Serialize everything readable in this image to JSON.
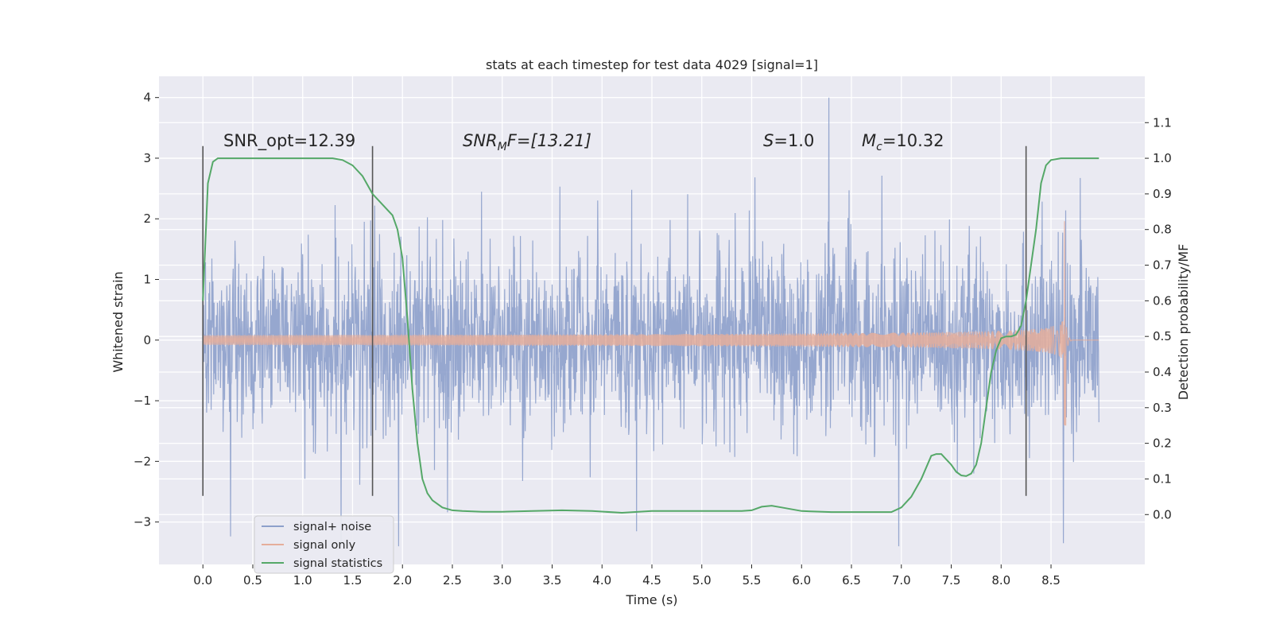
{
  "chart_data": {
    "type": "line",
    "title": "stats at each timestep for test data 4029 [signal=1]",
    "xlabel": "Time (s)",
    "ylabel": "Whitened strain",
    "ylabel_right": "Detection probability/MF",
    "xlim": [
      -0.44,
      9.44
    ],
    "ylim": [
      -3.7,
      4.35
    ],
    "ylim_right": [
      -0.14,
      1.23
    ],
    "x_ticks": [
      "0.0",
      "0.5",
      "1.0",
      "1.5",
      "2.0",
      "2.5",
      "3.0",
      "3.5",
      "4.0",
      "4.5",
      "5.0",
      "5.5",
      "6.0",
      "6.5",
      "7.0",
      "7.5",
      "8.0",
      "8.5"
    ],
    "y_ticks": [
      "−3",
      "−2",
      "−1",
      "0",
      "1",
      "2",
      "3",
      "4"
    ],
    "y_ticks_right": [
      "0.0",
      "0.1",
      "0.2",
      "0.3",
      "0.4",
      "0.5",
      "0.6",
      "0.7",
      "0.8",
      "0.9",
      "1.0",
      "1.1"
    ],
    "grid": true,
    "legend_position": "lower-left",
    "annotations": {
      "snr_opt": "SNR_opt=12.39",
      "snr_mf_main": "SNR",
      "snr_mf_sub": "M",
      "snr_mf_rest": "F=[13.21]",
      "s_main": "S",
      "s_rest": "=1.0",
      "mc_main": "M",
      "mc_sub": "c",
      "mc_rest": "=10.32"
    },
    "vertical_markers": [
      0.0,
      1.7,
      8.25
    ],
    "series": [
      {
        "name": "signal+ noise",
        "color": "#8da0cb",
        "description_values": {
          "x_range": [
            0.0,
            8.98
          ],
          "min": -3.4,
          "max": 4.0,
          "typical_envelope": [
            -2.0,
            2.0
          ]
        }
      },
      {
        "name": "signal only",
        "color": "#e5ae9b",
        "chirp": {
          "start_time": 0.0,
          "merger_time": 8.65,
          "peak_amplitude": 2.1,
          "min_amplitude": -1.4
        }
      },
      {
        "name": "signal statistics",
        "color": "#55a868",
        "axis": "right",
        "x": [
          0.0,
          0.05,
          0.1,
          0.15,
          0.2,
          0.3,
          0.5,
          0.8,
          1.1,
          1.3,
          1.4,
          1.5,
          1.6,
          1.7,
          1.8,
          1.9,
          1.95,
          2.0,
          2.05,
          2.1,
          2.15,
          2.2,
          2.25,
          2.3,
          2.4,
          2.5,
          2.6,
          2.8,
          3.0,
          3.3,
          3.6,
          3.9,
          4.2,
          4.5,
          4.8,
          5.1,
          5.4,
          5.5,
          5.6,
          5.7,
          5.8,
          6.0,
          6.3,
          6.6,
          6.9,
          7.0,
          7.1,
          7.2,
          7.3,
          7.35,
          7.4,
          7.45,
          7.5,
          7.55,
          7.6,
          7.65,
          7.7,
          7.75,
          7.8,
          7.85,
          7.9,
          7.95,
          8.0,
          8.05,
          8.1,
          8.15,
          8.2,
          8.25,
          8.3,
          8.35,
          8.4,
          8.45,
          8.5,
          8.6,
          8.8,
          8.98
        ],
        "y": [
          0.6,
          0.93,
          0.99,
          1.0,
          1.0,
          1.0,
          1.0,
          1.0,
          1.0,
          1.0,
          0.995,
          0.98,
          0.95,
          0.9,
          0.87,
          0.84,
          0.8,
          0.72,
          0.55,
          0.35,
          0.2,
          0.1,
          0.06,
          0.04,
          0.02,
          0.012,
          0.01,
          0.008,
          0.008,
          0.01,
          0.012,
          0.01,
          0.005,
          0.01,
          0.01,
          0.01,
          0.01,
          0.012,
          0.022,
          0.025,
          0.02,
          0.01,
          0.007,
          0.007,
          0.007,
          0.02,
          0.05,
          0.1,
          0.165,
          0.17,
          0.17,
          0.155,
          0.14,
          0.12,
          0.11,
          0.108,
          0.115,
          0.14,
          0.2,
          0.3,
          0.4,
          0.46,
          0.495,
          0.5,
          0.5,
          0.505,
          0.53,
          0.6,
          0.7,
          0.8,
          0.93,
          0.98,
          0.995,
          1.0,
          1.0,
          1.0
        ]
      }
    ]
  }
}
